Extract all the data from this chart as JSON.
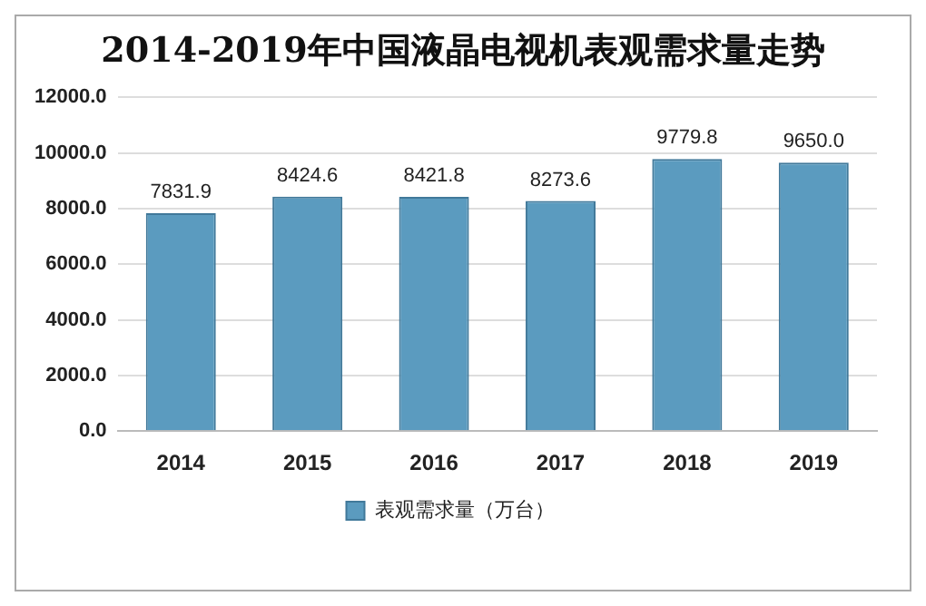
{
  "chart_data": {
    "type": "bar",
    "title": "2014-2019年中国液晶电视机表观需求量走势",
    "categories": [
      "2014",
      "2015",
      "2016",
      "2017",
      "2018",
      "2019"
    ],
    "series": [
      {
        "name": "表观需求量（万台）",
        "color": "#5b9bbf",
        "values": [
          7831.9,
          8424.6,
          8421.8,
          8273.6,
          9779.8,
          9650.0
        ],
        "value_labels": [
          "7831.9",
          "8424.6",
          "8421.8",
          "8273.6",
          "9779.8",
          "9650.0"
        ]
      }
    ],
    "ylim": [
      0,
      12000
    ],
    "yticks": [
      {
        "value": 0,
        "label": "0.0"
      },
      {
        "value": 2000,
        "label": "2000.0"
      },
      {
        "value": 4000,
        "label": "4000.0"
      },
      {
        "value": 6000,
        "label": "6000.0"
      },
      {
        "value": 8000,
        "label": "8000.0"
      },
      {
        "value": 10000,
        "label": "10000.0"
      },
      {
        "value": 12000,
        "label": "12000.0"
      }
    ],
    "grid": "y",
    "legend": "bottom"
  }
}
